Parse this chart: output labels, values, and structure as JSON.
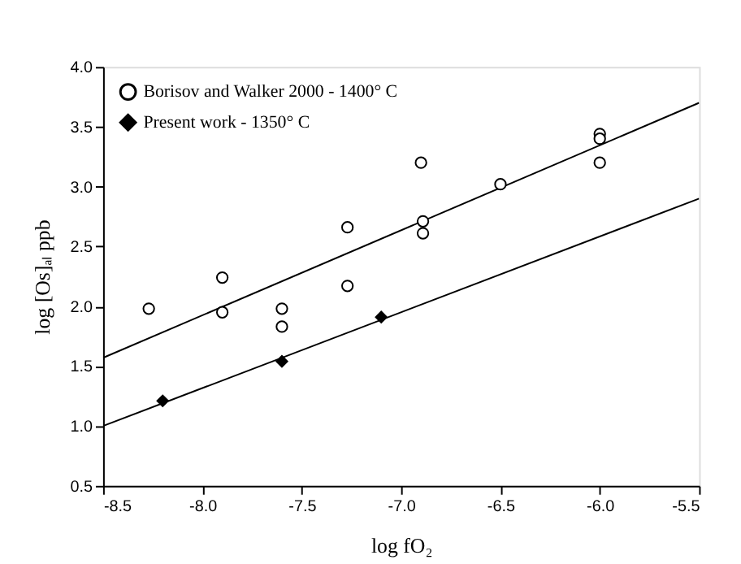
{
  "chart_data": {
    "type": "scatter",
    "xlabel": "log fO₂",
    "ylabel": "log [Os]ₐₗ ppb",
    "xlim": [
      -8.5,
      -5.5
    ],
    "xticks": [
      {
        "value": -8.5,
        "label": "-8.5"
      },
      {
        "value": -8.0,
        "label": "-8.0"
      },
      {
        "value": -7.5,
        "label": "-7.5"
      },
      {
        "value": -7.0,
        "label": "-7.0"
      },
      {
        "value": -6.5,
        "label": "-6.5"
      },
      {
        "value": -6.0,
        "label": "-6.0"
      },
      {
        "value": -5.5,
        "label": "-5.5"
      }
    ],
    "ylim": [
      0.5,
      4.0
    ],
    "yticks": [
      {
        "value": 0.5,
        "label": "0.5"
      },
      {
        "value": 1.0,
        "label": "1.0"
      },
      {
        "value": 1.5,
        "label": "1.5"
      },
      {
        "value": 2.0,
        "label": "2.0"
      },
      {
        "value": 2.5,
        "label": "2.5"
      },
      {
        "value": 3.0,
        "label": "3.0"
      },
      {
        "value": 3.5,
        "label": "3.5"
      },
      {
        "value": 4.0,
        "label": "4.0"
      }
    ],
    "grid": false,
    "legend": "top left",
    "series": [
      {
        "name": "Borisov and Walker 2000 - 1400° C",
        "color": "#000000",
        "marker": "circle",
        "x": [
          -8.27,
          -7.9,
          -7.9,
          -7.6,
          -7.6,
          -7.27,
          -7.27,
          -6.9,
          -6.89,
          -6.89,
          -6.5,
          -6.0,
          -6.0,
          -6.0
        ],
        "values": [
          1.98,
          2.24,
          1.95,
          1.98,
          1.83,
          2.66,
          2.17,
          3.2,
          2.71,
          2.61,
          3.02,
          3.44,
          3.4,
          3.2
        ]
      },
      {
        "name": "Present work - 1350° C",
        "color": "#000000",
        "marker": "diamond",
        "x": [
          -8.2,
          -7.6,
          -7.1
        ],
        "values": [
          1.21,
          1.54,
          1.91
        ]
      },
      {
        "type": "line",
        "color": "#000000",
        "x": [
          -8.5,
          -5.5
        ],
        "values": [
          1.57,
          3.7
        ]
      },
      {
        "type": "line",
        "color": "#000000",
        "x": [
          -8.5,
          -5.5
        ],
        "values": [
          1.0,
          2.9
        ]
      }
    ]
  }
}
